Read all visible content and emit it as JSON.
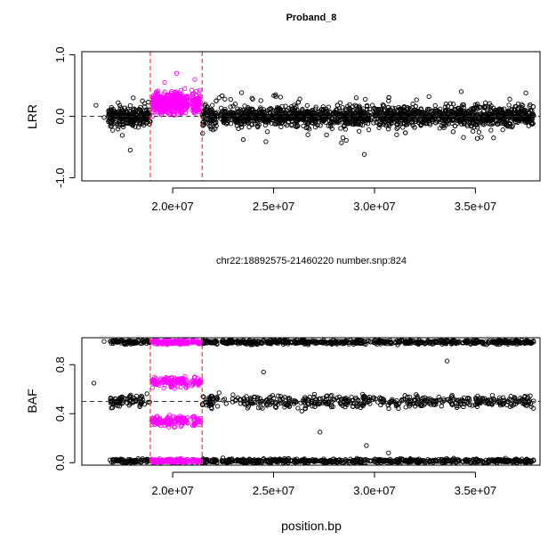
{
  "figure": {
    "title": "Proband_8",
    "subtitle": "chr22:18892575-21460220 number.snp:824",
    "x_axis_title": "position.bp"
  },
  "colors": {
    "points": "#000000",
    "cnv_points": "#ff00ff",
    "region_lines": "#ff3333",
    "reference_line": "#333333"
  },
  "chart_data": [
    {
      "type": "scatter",
      "panel": "LRR",
      "ylabel": "LRR",
      "xlabel": "",
      "xlim": [
        15500000,
        38200000
      ],
      "ylim": [
        -1.05,
        1.05
      ],
      "x_ticks": [
        20000000,
        25000000,
        30000000,
        35000000
      ],
      "x_tick_labels": [
        "2.0e+07",
        "2.5e+07",
        "3.0e+07",
        "3.5e+07"
      ],
      "y_ticks": [
        -1.0,
        0.0,
        1.0
      ],
      "y_tick_labels": [
        "-1.0",
        "0.0",
        "1.0"
      ],
      "reference_line": 0.0,
      "region": [
        18892575,
        21460220
      ],
      "series": [
        {
          "role": "background",
          "x": [
            16200000,
            16600000,
            16900000,
            17100000,
            17300000,
            17500000,
            17700000,
            17900000,
            18100000,
            18300000,
            18500000,
            18700000,
            21700000,
            22000000,
            22300000,
            22700000,
            23100000,
            23500000,
            23900000,
            24300000,
            24700000,
            25100000,
            25500000,
            25900000,
            26300000,
            26700000,
            27100000,
            27500000,
            27900000,
            28300000,
            28700000,
            29100000,
            29500000,
            29900000,
            30300000,
            30700000,
            31100000,
            31500000,
            31900000,
            32300000,
            32700000,
            33100000,
            33500000,
            33900000,
            34300000,
            34700000,
            35100000,
            35500000,
            35900000,
            36300000,
            36700000,
            37100000,
            37500000,
            37800000
          ],
          "values": [
            0.18,
            -0.02,
            0.05,
            -0.12,
            0.22,
            -0.31,
            0.08,
            -0.55,
            0.12,
            -0.18,
            0.25,
            0.02,
            0.15,
            -0.22,
            0.3,
            -0.1,
            0.2,
            -0.38,
            0.12,
            0.05,
            -0.25,
            0.35,
            0.1,
            -0.15,
            0.28,
            -0.3,
            0.15,
            0.02,
            -0.2,
            0.22,
            -0.05,
            0.3,
            -0.62,
            0.18,
            -0.12,
            0.25,
            -0.3,
            0.08,
            0.2,
            -0.15,
            0.32,
            -0.08,
            0.15,
            -0.25,
            0.4,
            0.05,
            -0.18,
            0.22,
            -0.35,
            0.1,
            0.28,
            -0.1,
            0.38,
            0.02
          ]
        },
        {
          "role": "cnv",
          "x": [
            19000000,
            19200000,
            19400000,
            19600000,
            19800000,
            20000000,
            20200000,
            20400000,
            20600000,
            20900000,
            21100000,
            21300000
          ],
          "values": [
            0.15,
            0.4,
            0.05,
            0.55,
            0.25,
            0.3,
            0.7,
            0.1,
            0.45,
            0.2,
            0.6,
            0.25
          ]
        }
      ]
    },
    {
      "type": "scatter",
      "panel": "BAF",
      "ylabel": "BAF",
      "xlabel": "position.bp",
      "xlim": [
        15500000,
        38200000
      ],
      "ylim": [
        -0.02,
        1.02
      ],
      "x_ticks": [
        20000000,
        25000000,
        30000000,
        35000000
      ],
      "x_tick_labels": [
        "2.0e+07",
        "2.5e+07",
        "3.0e+07",
        "3.5e+07"
      ],
      "y_ticks": [
        0.0,
        0.4,
        0.8
      ],
      "y_tick_labels": [
        "0.0",
        "0.4",
        "0.8"
      ],
      "reference_line": 0.5,
      "region": [
        18892575,
        21460220
      ],
      "bands": [
        {
          "role": "background",
          "center": 0.985,
          "spread": 0.012
        },
        {
          "role": "background",
          "center": 0.5,
          "spread": 0.035
        },
        {
          "role": "background",
          "center": 0.015,
          "spread": 0.012
        },
        {
          "role": "cnv",
          "center": 0.985,
          "spread": 0.012
        },
        {
          "role": "cnv",
          "center": 0.66,
          "spread": 0.03
        },
        {
          "role": "cnv",
          "center": 0.34,
          "spread": 0.03
        },
        {
          "role": "cnv",
          "center": 0.015,
          "spread": 0.012
        }
      ],
      "outliers": {
        "x": [
          16100000,
          16600000,
          24500000,
          27300000,
          29600000,
          30700000,
          26400000,
          22300000,
          33600000
        ],
        "values": [
          0.65,
          0.99,
          0.74,
          0.25,
          0.14,
          0.08,
          0.42,
          0.57,
          0.83
        ]
      }
    }
  ]
}
